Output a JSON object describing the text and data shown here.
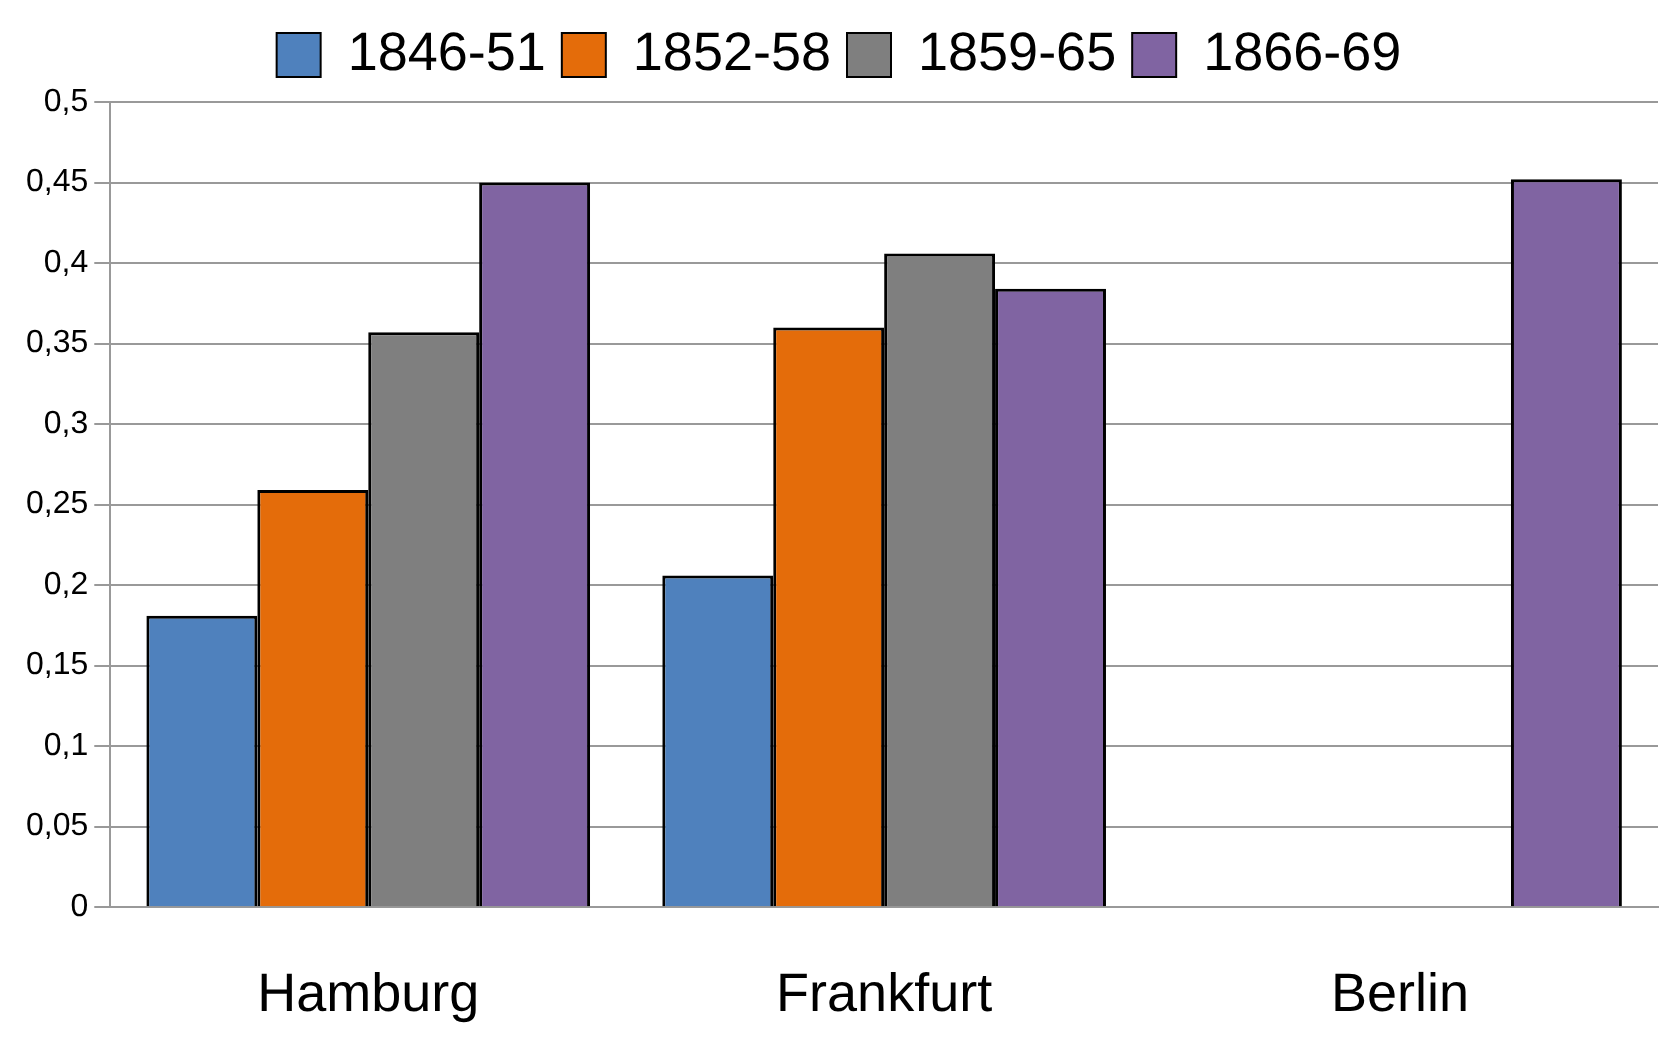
{
  "chart_data": {
    "type": "bar",
    "categories": [
      "Hamburg",
      "Frankfurt",
      "Berlin"
    ],
    "series": [
      {
        "name": "1846-51",
        "color": "#4f81bd",
        "values": [
          0.181,
          0.206,
          null
        ]
      },
      {
        "name": "1852-58",
        "color": "#e46c0a",
        "values": [
          0.259,
          0.36,
          null
        ]
      },
      {
        "name": "1859-65",
        "color": "#7f7f7f",
        "values": [
          0.357,
          0.406,
          null
        ]
      },
      {
        "name": "1866-69",
        "color": "#8064a2",
        "values": [
          0.45,
          0.384,
          0.452
        ]
      }
    ],
    "ylim": [
      0,
      0.5
    ],
    "yticks": [
      {
        "value": 0,
        "label": "0"
      },
      {
        "value": 0.05,
        "label": "0,05"
      },
      {
        "value": 0.1,
        "label": "0,1"
      },
      {
        "value": 0.15,
        "label": "0,15"
      },
      {
        "value": 0.2,
        "label": "0,2"
      },
      {
        "value": 0.25,
        "label": "0,25"
      },
      {
        "value": 0.3,
        "label": "0,3"
      },
      {
        "value": 0.35,
        "label": "0,35"
      },
      {
        "value": 0.4,
        "label": "0,4"
      },
      {
        "value": 0.45,
        "label": "0,45"
      },
      {
        "value": 0.5,
        "label": "0,5"
      }
    ],
    "grid": "y",
    "legend": "top"
  }
}
